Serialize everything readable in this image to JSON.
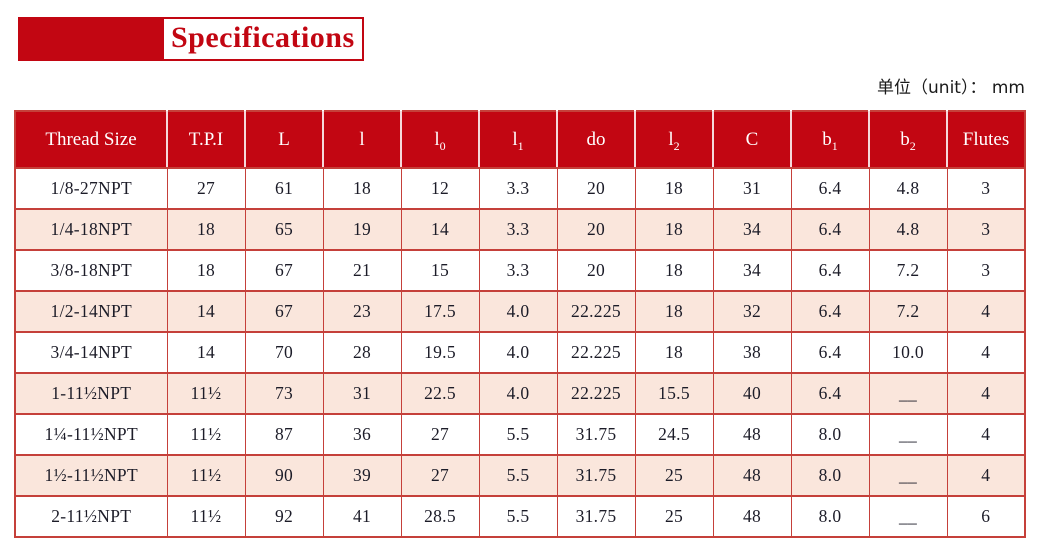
{
  "title": {
    "text": "Specifications"
  },
  "unit_label": "单位（unit）： mm",
  "table": {
    "columns": [
      {
        "label": "Thread Size",
        "sub": ""
      },
      {
        "label": "T.P.I",
        "sub": ""
      },
      {
        "label": "L",
        "sub": ""
      },
      {
        "label": "l",
        "sub": ""
      },
      {
        "label": "l",
        "sub": "0"
      },
      {
        "label": "l",
        "sub": "1"
      },
      {
        "label": "do",
        "sub": ""
      },
      {
        "label": "l",
        "sub": "2"
      },
      {
        "label": "C",
        "sub": ""
      },
      {
        "label": "b",
        "sub": "1"
      },
      {
        "label": "b",
        "sub": "2"
      },
      {
        "label": "Flutes",
        "sub": ""
      }
    ],
    "rows": [
      [
        "1/8-27NPT",
        "27",
        "61",
        "18",
        "12",
        "3.3",
        "20",
        "18",
        "31",
        "6.4",
        "4.8",
        "3"
      ],
      [
        "1/4-18NPT",
        "18",
        "65",
        "19",
        "14",
        "3.3",
        "20",
        "18",
        "34",
        "6.4",
        "4.8",
        "3"
      ],
      [
        "3/8-18NPT",
        "18",
        "67",
        "21",
        "15",
        "3.3",
        "20",
        "18",
        "34",
        "6.4",
        "7.2",
        "3"
      ],
      [
        "1/2-14NPT",
        "14",
        "67",
        "23",
        "17.5",
        "4.0",
        "22.225",
        "18",
        "32",
        "6.4",
        "7.2",
        "4"
      ],
      [
        "3/4-14NPT",
        "14",
        "70",
        "28",
        "19.5",
        "4.0",
        "22.225",
        "18",
        "38",
        "6.4",
        "10.0",
        "4"
      ],
      [
        "1-11½NPT",
        "11½",
        "73",
        "31",
        "22.5",
        "4.0",
        "22.225",
        "15.5",
        "40",
        "6.4",
        "__",
        "4"
      ],
      [
        "1¼-11½NPT",
        "11½",
        "87",
        "36",
        "27",
        "5.5",
        "31.75",
        "24.5",
        "48",
        "8.0",
        "__",
        "4"
      ],
      [
        "1½-11½NPT",
        "11½",
        "90",
        "39",
        "27",
        "5.5",
        "31.75",
        "25",
        "48",
        "8.0",
        "__",
        "4"
      ],
      [
        "2-11½NPT",
        "11½",
        "92",
        "41",
        "28.5",
        "5.5",
        "31.75",
        "25",
        "48",
        "8.0",
        "__",
        "6"
      ]
    ],
    "colors": {
      "header_bg": "#c20612",
      "header_text": "#ffffff",
      "row_alt_bg": "#fae6dc",
      "grid": "#c5403a",
      "text": "#1c1c28"
    }
  }
}
